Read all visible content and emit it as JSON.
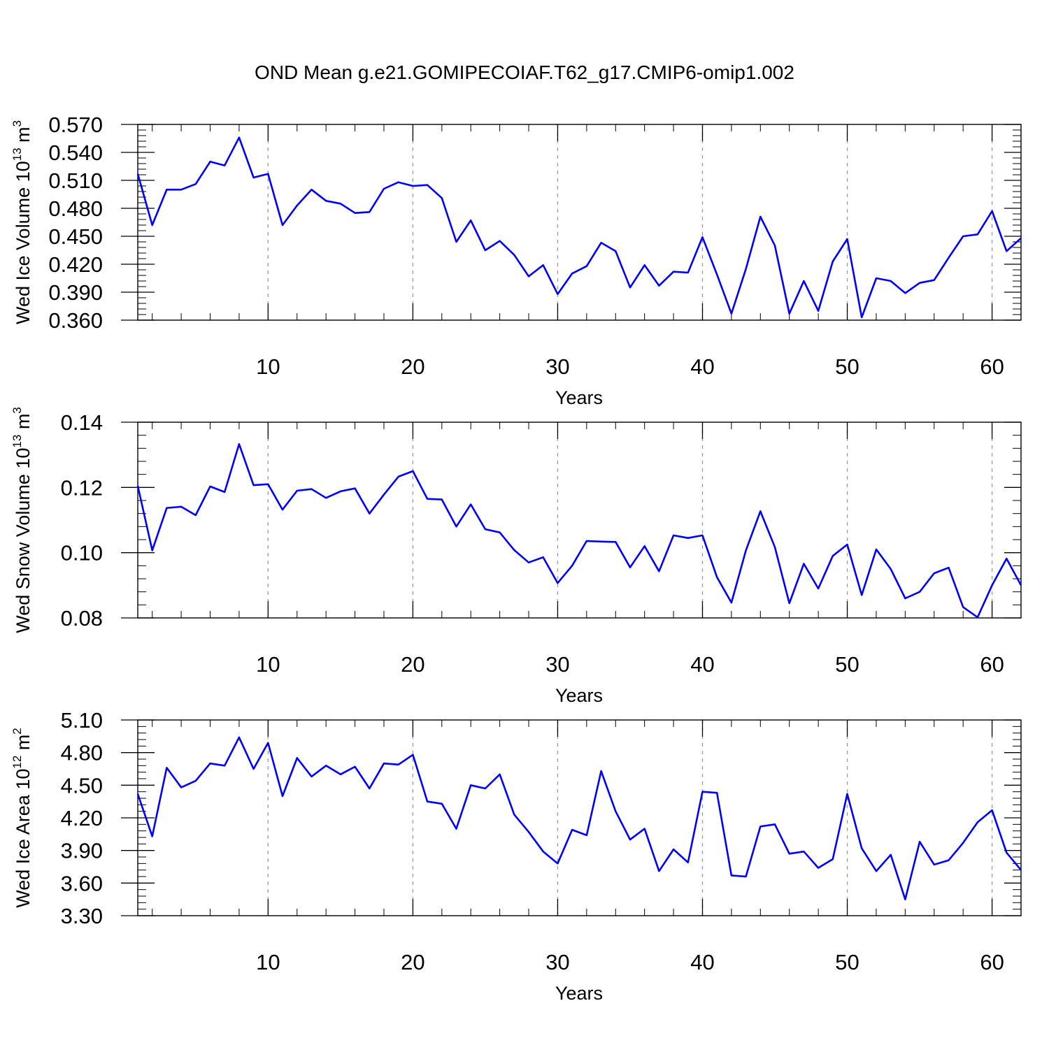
{
  "figure": {
    "title": "OND Mean g.e21.GOMIPECOIAF.T62_g17.CMIP6-omip1.002"
  },
  "chart_data": [
    {
      "type": "line",
      "title": "",
      "xlabel": "Years",
      "ylabel": "Wed Ice Volume 10",
      "ylabel_exp": "13",
      "ylabel_unit": " m",
      "ylabel_unit_exp": "3",
      "xlim": [
        1,
        62
      ],
      "ylim": [
        0.36,
        0.57
      ],
      "yticks": [
        0.36,
        0.39,
        0.42,
        0.45,
        0.48,
        0.51,
        0.54,
        0.57
      ],
      "ytick_labels": [
        "0.360",
        "0.390",
        "0.420",
        "0.450",
        "0.480",
        "0.510",
        "0.540",
        "0.570"
      ],
      "xticks": [
        10,
        20,
        30,
        40,
        50,
        60
      ],
      "xtick_labels": [
        "10",
        "20",
        "30",
        "40",
        "50",
        "60"
      ],
      "grid": "vertical dashed at major x ticks",
      "line_color": "#0000ff",
      "series": [
        {
          "name": "Wed Ice Volume",
          "x": [
            1,
            2,
            3,
            4,
            5,
            6,
            7,
            8,
            9,
            10,
            11,
            12,
            13,
            14,
            15,
            16,
            17,
            18,
            19,
            20,
            21,
            22,
            23,
            24,
            25,
            26,
            27,
            28,
            29,
            30,
            31,
            32,
            33,
            34,
            35,
            36,
            37,
            38,
            39,
            40,
            41,
            42,
            43,
            44,
            45,
            46,
            47,
            48,
            49,
            50,
            51,
            52,
            53,
            54,
            55,
            56,
            57,
            58,
            59,
            60,
            61,
            62
          ],
          "values": [
            0.517,
            0.462,
            0.5,
            0.5,
            0.506,
            0.53,
            0.526,
            0.556,
            0.513,
            0.517,
            0.462,
            0.483,
            0.5,
            0.488,
            0.485,
            0.475,
            0.476,
            0.501,
            0.508,
            0.504,
            0.505,
            0.491,
            0.444,
            0.467,
            0.435,
            0.445,
            0.43,
            0.407,
            0.419,
            0.388,
            0.41,
            0.418,
            0.443,
            0.434,
            0.395,
            0.419,
            0.397,
            0.412,
            0.411,
            0.449,
            0.409,
            0.367,
            0.415,
            0.471,
            0.44,
            0.367,
            0.402,
            0.37,
            0.423,
            0.447,
            0.363,
            0.405,
            0.402,
            0.389,
            0.4,
            0.403,
            0.427,
            0.45,
            0.452,
            0.477,
            0.434,
            0.448
          ]
        }
      ]
    },
    {
      "type": "line",
      "title": "",
      "xlabel": "Years",
      "ylabel": "Wed Snow Volume 10",
      "ylabel_exp": "13",
      "ylabel_unit": " m",
      "ylabel_unit_exp": "3",
      "xlim": [
        1,
        62
      ],
      "ylim": [
        0.08,
        0.14
      ],
      "yticks": [
        0.08,
        0.1,
        0.12,
        0.14
      ],
      "ytick_labels": [
        "0.08",
        "0.10",
        "0.12",
        "0.14"
      ],
      "xticks": [
        10,
        20,
        30,
        40,
        50,
        60
      ],
      "xtick_labels": [
        "10",
        "20",
        "30",
        "40",
        "50",
        "60"
      ],
      "grid": "vertical dashed at major x ticks",
      "line_color": "#0000ff",
      "series": [
        {
          "name": "Wed Snow Volume",
          "x": [
            1,
            2,
            3,
            4,
            5,
            6,
            7,
            8,
            9,
            10,
            11,
            12,
            13,
            14,
            15,
            16,
            17,
            18,
            19,
            20,
            21,
            22,
            23,
            24,
            25,
            26,
            27,
            28,
            29,
            30,
            31,
            32,
            33,
            34,
            35,
            36,
            37,
            38,
            39,
            40,
            41,
            42,
            43,
            44,
            45,
            46,
            47,
            48,
            49,
            50,
            51,
            52,
            53,
            54,
            55,
            56,
            57,
            58,
            59,
            60,
            61,
            62
          ],
          "values": [
            0.1205,
            0.1007,
            0.1137,
            0.1141,
            0.1115,
            0.1203,
            0.1186,
            0.1333,
            0.1207,
            0.121,
            0.1132,
            0.119,
            0.1195,
            0.1168,
            0.1188,
            0.1197,
            0.112,
            0.1178,
            0.1233,
            0.125,
            0.1165,
            0.1163,
            0.108,
            0.1148,
            0.1072,
            0.1062,
            0.1008,
            0.097,
            0.0986,
            0.0907,
            0.096,
            0.1036,
            0.1034,
            0.1033,
            0.0955,
            0.102,
            0.0943,
            0.1053,
            0.1045,
            0.1053,
            0.0925,
            0.0847,
            0.1007,
            0.1127,
            0.1017,
            0.0845,
            0.0966,
            0.089,
            0.099,
            0.1025,
            0.087,
            0.101,
            0.095,
            0.086,
            0.088,
            0.0937,
            0.0954,
            0.0833,
            0.0802,
            0.09,
            0.0982,
            0.09
          ]
        }
      ]
    },
    {
      "type": "line",
      "title": "",
      "xlabel": "Years",
      "ylabel": "Wed Ice Area 10",
      "ylabel_exp": "12",
      "ylabel_unit": " m",
      "ylabel_unit_exp": "2",
      "xlim": [
        1,
        62
      ],
      "ylim": [
        3.3,
        5.1
      ],
      "yticks": [
        3.3,
        3.6,
        3.9,
        4.2,
        4.5,
        4.8,
        5.1
      ],
      "ytick_labels": [
        "3.30",
        "3.60",
        "3.90",
        "4.20",
        "4.50",
        "4.80",
        "5.10"
      ],
      "xticks": [
        10,
        20,
        30,
        40,
        50,
        60
      ],
      "xtick_labels": [
        "10",
        "20",
        "30",
        "40",
        "50",
        "60"
      ],
      "grid": "vertical dashed at major x ticks",
      "line_color": "#0000ff",
      "series": [
        {
          "name": "Wed Ice Area",
          "x": [
            1,
            2,
            3,
            4,
            5,
            6,
            7,
            8,
            9,
            10,
            11,
            12,
            13,
            14,
            15,
            16,
            17,
            18,
            19,
            20,
            21,
            22,
            23,
            24,
            25,
            26,
            27,
            28,
            29,
            30,
            31,
            32,
            33,
            34,
            35,
            36,
            37,
            38,
            39,
            40,
            41,
            42,
            43,
            44,
            45,
            46,
            47,
            48,
            49,
            50,
            51,
            52,
            53,
            54,
            55,
            56,
            57,
            58,
            59,
            60,
            61,
            62
          ],
          "values": [
            4.42,
            4.03,
            4.66,
            4.48,
            4.54,
            4.7,
            4.68,
            4.94,
            4.65,
            4.89,
            4.4,
            4.75,
            4.58,
            4.68,
            4.6,
            4.67,
            4.47,
            4.7,
            4.69,
            4.78,
            4.35,
            4.33,
            4.1,
            4.5,
            4.47,
            4.6,
            4.23,
            4.07,
            3.89,
            3.78,
            4.09,
            4.04,
            4.63,
            4.26,
            4.0,
            4.1,
            3.71,
            3.91,
            3.79,
            4.44,
            4.43,
            3.67,
            3.66,
            4.12,
            4.14,
            3.87,
            3.89,
            3.74,
            3.82,
            4.42,
            3.92,
            3.71,
            3.86,
            3.45,
            3.98,
            3.77,
            3.81,
            3.97,
            4.16,
            4.27,
            3.88,
            3.72
          ]
        }
      ]
    }
  ]
}
